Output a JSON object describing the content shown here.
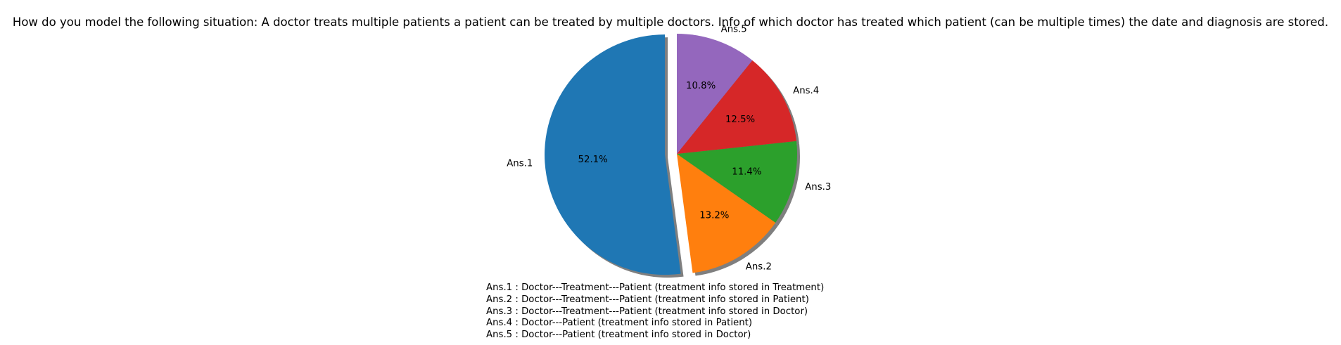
{
  "chart_data": {
    "type": "pie",
    "title": "How do you model the following situation: A doctor treats multiple patients a patient can be treated by  multiple doctors. Info of which doctor has treated which patient (can be multiple times) the date and diagnosis are stored.",
    "start_angle_deg": 90,
    "direction": "counterclockwise",
    "shadow": true,
    "slices": [
      {
        "label": "Ans.1",
        "pct_label": "52.1%",
        "value": 52.1,
        "color": "#1f77b4",
        "exploded": true
      },
      {
        "label": "Ans.2",
        "pct_label": "13.2%",
        "value": 13.2,
        "color": "#ff7f0e",
        "exploded": false
      },
      {
        "label": "Ans.3",
        "pct_label": "11.4%",
        "value": 11.4,
        "color": "#2ca02c",
        "exploded": false
      },
      {
        "label": "Ans.4",
        "pct_label": "12.5%",
        "value": 12.5,
        "color": "#d62728",
        "exploded": false
      },
      {
        "label": "Ans.5",
        "pct_label": "10.8%",
        "value": 10.8,
        "color": "#9467bd",
        "exploded": false
      }
    ],
    "notes": [
      "Ans.1 : Doctor---Treatment---Patient (treatment info stored in Treatment)",
      "Ans.2 : Doctor---Treatment---Patient (treatment info stored in Patient)",
      "Ans.3 : Doctor---Treatment---Patient (treatment info stored in Doctor)",
      "Ans.4 : Doctor---Patient (treatment info stored in Patient)",
      "Ans.5 : Doctor---Patient (treatment info stored in Doctor)"
    ]
  }
}
